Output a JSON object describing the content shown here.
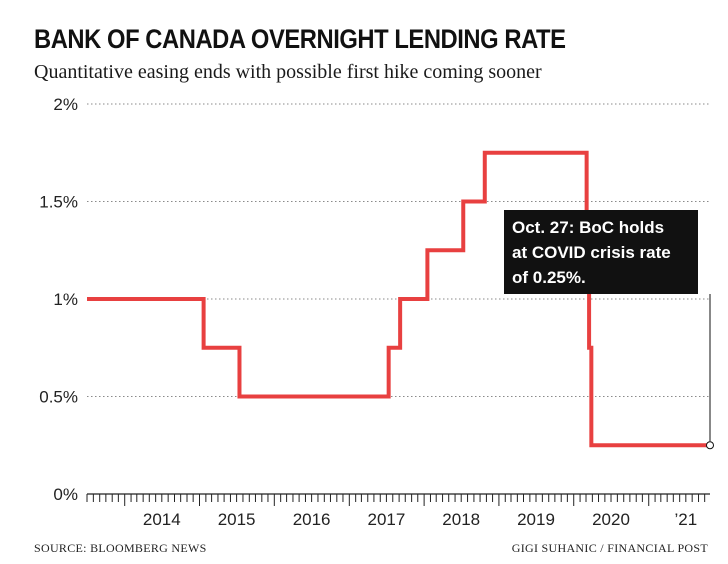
{
  "chart_data": {
    "type": "line",
    "title": "BANK OF CANADA OVERNIGHT LENDING RATE",
    "subtitle": "Quantitative easing ends with possible first hike coming sooner",
    "xlabel": "",
    "ylabel": "",
    "ylim": [
      0,
      2
    ],
    "xlim": [
      "2013-07-01",
      "2021-10-27"
    ],
    "y_ticks": [
      0,
      0.5,
      1,
      1.5,
      2
    ],
    "y_tick_labels": [
      "0%",
      "0.5%",
      "1%",
      "1.5%",
      "2%"
    ],
    "x_tick_labels": [
      {
        "label": "2014",
        "year": 2014
      },
      {
        "label": "2015",
        "year": 2015
      },
      {
        "label": "2016",
        "year": 2016
      },
      {
        "label": "2017",
        "year": 2017
      },
      {
        "label": "2018",
        "year": 2018
      },
      {
        "label": "2019",
        "year": 2019
      },
      {
        "label": "2020",
        "year": 2020
      },
      {
        "label": "’21",
        "year": 2021
      }
    ],
    "grid": true,
    "series": [
      {
        "color": "#e84040",
        "step": true,
        "points": [
          {
            "date": "2013-07-01",
            "value": 1.0
          },
          {
            "date": "2015-01-21",
            "value": 0.75
          },
          {
            "date": "2015-07-15",
            "value": 0.5
          },
          {
            "date": "2017-07-12",
            "value": 0.75
          },
          {
            "date": "2017-09-06",
            "value": 1.0
          },
          {
            "date": "2018-01-17",
            "value": 1.25
          },
          {
            "date": "2018-07-11",
            "value": 1.5
          },
          {
            "date": "2018-10-24",
            "value": 1.75
          },
          {
            "date": "2020-03-04",
            "value": 1.25
          },
          {
            "date": "2020-03-16",
            "value": 0.75
          },
          {
            "date": "2020-03-27",
            "value": 0.25
          },
          {
            "date": "2021-10-27",
            "value": 0.25
          }
        ]
      }
    ],
    "annotations": [
      {
        "lines": [
          "Oct. 27: BoC holds",
          "at COVID crisis rate",
          "of 0.25%."
        ],
        "date": "2021-10-27",
        "value": 0.25
      }
    ]
  },
  "footer": {
    "source": "SOURCE: BLOOMBERG NEWS",
    "credit": "GIGI SUHANIC / FINANCIAL POST"
  },
  "colors": {
    "line": "#e84040",
    "annotation_bg": "#111111",
    "grid": "#8a8a8a"
  }
}
